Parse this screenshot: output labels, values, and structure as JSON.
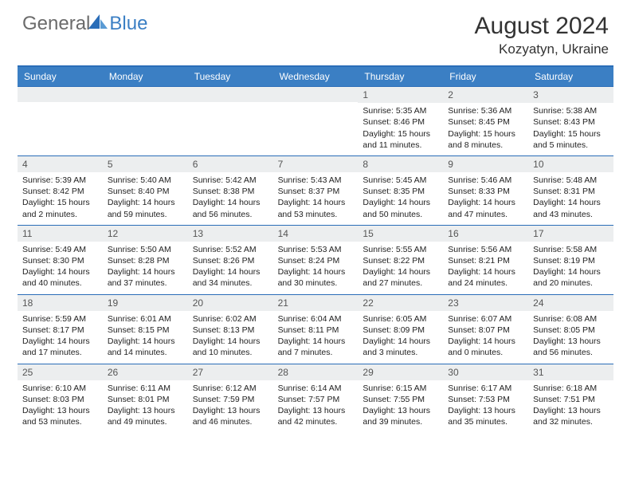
{
  "logo": {
    "text_gray": "General",
    "text_blue": "Blue"
  },
  "title": "August 2024",
  "location": "Kozyatyn, Ukraine",
  "colors": {
    "header_bg": "#3b7fc4",
    "border": "#2a6db8",
    "daynum_bg": "#eceeef",
    "logo_gray": "#6b6b6b",
    "logo_blue": "#3b7fc4"
  },
  "weekdays": [
    "Sunday",
    "Monday",
    "Tuesday",
    "Wednesday",
    "Thursday",
    "Friday",
    "Saturday"
  ],
  "weeks": [
    [
      {
        "empty": true
      },
      {
        "empty": true
      },
      {
        "empty": true
      },
      {
        "empty": true
      },
      {
        "num": "1",
        "sunrise": "Sunrise: 5:35 AM",
        "sunset": "Sunset: 8:46 PM",
        "day1": "Daylight: 15 hours",
        "day2": "and 11 minutes."
      },
      {
        "num": "2",
        "sunrise": "Sunrise: 5:36 AM",
        "sunset": "Sunset: 8:45 PM",
        "day1": "Daylight: 15 hours",
        "day2": "and 8 minutes."
      },
      {
        "num": "3",
        "sunrise": "Sunrise: 5:38 AM",
        "sunset": "Sunset: 8:43 PM",
        "day1": "Daylight: 15 hours",
        "day2": "and 5 minutes."
      }
    ],
    [
      {
        "num": "4",
        "sunrise": "Sunrise: 5:39 AM",
        "sunset": "Sunset: 8:42 PM",
        "day1": "Daylight: 15 hours",
        "day2": "and 2 minutes."
      },
      {
        "num": "5",
        "sunrise": "Sunrise: 5:40 AM",
        "sunset": "Sunset: 8:40 PM",
        "day1": "Daylight: 14 hours",
        "day2": "and 59 minutes."
      },
      {
        "num": "6",
        "sunrise": "Sunrise: 5:42 AM",
        "sunset": "Sunset: 8:38 PM",
        "day1": "Daylight: 14 hours",
        "day2": "and 56 minutes."
      },
      {
        "num": "7",
        "sunrise": "Sunrise: 5:43 AM",
        "sunset": "Sunset: 8:37 PM",
        "day1": "Daylight: 14 hours",
        "day2": "and 53 minutes."
      },
      {
        "num": "8",
        "sunrise": "Sunrise: 5:45 AM",
        "sunset": "Sunset: 8:35 PM",
        "day1": "Daylight: 14 hours",
        "day2": "and 50 minutes."
      },
      {
        "num": "9",
        "sunrise": "Sunrise: 5:46 AM",
        "sunset": "Sunset: 8:33 PM",
        "day1": "Daylight: 14 hours",
        "day2": "and 47 minutes."
      },
      {
        "num": "10",
        "sunrise": "Sunrise: 5:48 AM",
        "sunset": "Sunset: 8:31 PM",
        "day1": "Daylight: 14 hours",
        "day2": "and 43 minutes."
      }
    ],
    [
      {
        "num": "11",
        "sunrise": "Sunrise: 5:49 AM",
        "sunset": "Sunset: 8:30 PM",
        "day1": "Daylight: 14 hours",
        "day2": "and 40 minutes."
      },
      {
        "num": "12",
        "sunrise": "Sunrise: 5:50 AM",
        "sunset": "Sunset: 8:28 PM",
        "day1": "Daylight: 14 hours",
        "day2": "and 37 minutes."
      },
      {
        "num": "13",
        "sunrise": "Sunrise: 5:52 AM",
        "sunset": "Sunset: 8:26 PM",
        "day1": "Daylight: 14 hours",
        "day2": "and 34 minutes."
      },
      {
        "num": "14",
        "sunrise": "Sunrise: 5:53 AM",
        "sunset": "Sunset: 8:24 PM",
        "day1": "Daylight: 14 hours",
        "day2": "and 30 minutes."
      },
      {
        "num": "15",
        "sunrise": "Sunrise: 5:55 AM",
        "sunset": "Sunset: 8:22 PM",
        "day1": "Daylight: 14 hours",
        "day2": "and 27 minutes."
      },
      {
        "num": "16",
        "sunrise": "Sunrise: 5:56 AM",
        "sunset": "Sunset: 8:21 PM",
        "day1": "Daylight: 14 hours",
        "day2": "and 24 minutes."
      },
      {
        "num": "17",
        "sunrise": "Sunrise: 5:58 AM",
        "sunset": "Sunset: 8:19 PM",
        "day1": "Daylight: 14 hours",
        "day2": "and 20 minutes."
      }
    ],
    [
      {
        "num": "18",
        "sunrise": "Sunrise: 5:59 AM",
        "sunset": "Sunset: 8:17 PM",
        "day1": "Daylight: 14 hours",
        "day2": "and 17 minutes."
      },
      {
        "num": "19",
        "sunrise": "Sunrise: 6:01 AM",
        "sunset": "Sunset: 8:15 PM",
        "day1": "Daylight: 14 hours",
        "day2": "and 14 minutes."
      },
      {
        "num": "20",
        "sunrise": "Sunrise: 6:02 AM",
        "sunset": "Sunset: 8:13 PM",
        "day1": "Daylight: 14 hours",
        "day2": "and 10 minutes."
      },
      {
        "num": "21",
        "sunrise": "Sunrise: 6:04 AM",
        "sunset": "Sunset: 8:11 PM",
        "day1": "Daylight: 14 hours",
        "day2": "and 7 minutes."
      },
      {
        "num": "22",
        "sunrise": "Sunrise: 6:05 AM",
        "sunset": "Sunset: 8:09 PM",
        "day1": "Daylight: 14 hours",
        "day2": "and 3 minutes."
      },
      {
        "num": "23",
        "sunrise": "Sunrise: 6:07 AM",
        "sunset": "Sunset: 8:07 PM",
        "day1": "Daylight: 14 hours",
        "day2": "and 0 minutes."
      },
      {
        "num": "24",
        "sunrise": "Sunrise: 6:08 AM",
        "sunset": "Sunset: 8:05 PM",
        "day1": "Daylight: 13 hours",
        "day2": "and 56 minutes."
      }
    ],
    [
      {
        "num": "25",
        "sunrise": "Sunrise: 6:10 AM",
        "sunset": "Sunset: 8:03 PM",
        "day1": "Daylight: 13 hours",
        "day2": "and 53 minutes."
      },
      {
        "num": "26",
        "sunrise": "Sunrise: 6:11 AM",
        "sunset": "Sunset: 8:01 PM",
        "day1": "Daylight: 13 hours",
        "day2": "and 49 minutes."
      },
      {
        "num": "27",
        "sunrise": "Sunrise: 6:12 AM",
        "sunset": "Sunset: 7:59 PM",
        "day1": "Daylight: 13 hours",
        "day2": "and 46 minutes."
      },
      {
        "num": "28",
        "sunrise": "Sunrise: 6:14 AM",
        "sunset": "Sunset: 7:57 PM",
        "day1": "Daylight: 13 hours",
        "day2": "and 42 minutes."
      },
      {
        "num": "29",
        "sunrise": "Sunrise: 6:15 AM",
        "sunset": "Sunset: 7:55 PM",
        "day1": "Daylight: 13 hours",
        "day2": "and 39 minutes."
      },
      {
        "num": "30",
        "sunrise": "Sunrise: 6:17 AM",
        "sunset": "Sunset: 7:53 PM",
        "day1": "Daylight: 13 hours",
        "day2": "and 35 minutes."
      },
      {
        "num": "31",
        "sunrise": "Sunrise: 6:18 AM",
        "sunset": "Sunset: 7:51 PM",
        "day1": "Daylight: 13 hours",
        "day2": "and 32 minutes."
      }
    ]
  ]
}
